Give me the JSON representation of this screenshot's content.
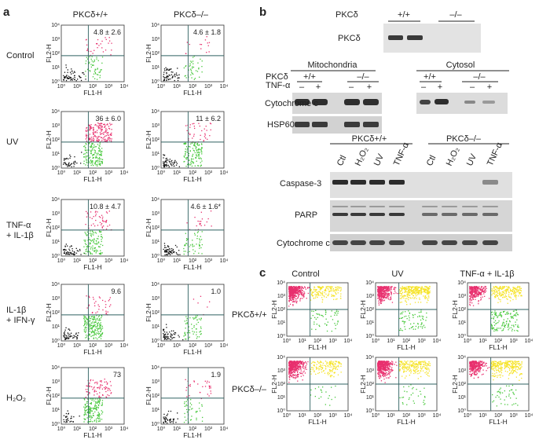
{
  "panel_a": {
    "letter": "a",
    "columns": [
      "PKCδ+/+",
      "PKCδ–/–"
    ],
    "axis": {
      "xlabel": "FL1-H",
      "ylabel": "FL2-H",
      "ticks": [
        "10⁰",
        "10¹",
        "10²",
        "10³",
        "10⁴"
      ]
    },
    "rows": [
      {
        "label": [
          "Control"
        ],
        "values": [
          "4.8 ± 2.6",
          "4.6 ± 1.8"
        ],
        "density": [
          [
            60,
            50,
            30
          ],
          [
            60,
            40,
            14
          ]
        ]
      },
      {
        "label": [
          "UV"
        ],
        "values": [
          "36 ± 6.0",
          "11 ± 6.2"
        ],
        "density": [
          [
            40,
            150,
            180
          ],
          [
            55,
            120,
            40
          ]
        ]
      },
      {
        "label": [
          "TNF-α",
          "+ IL-1β"
        ],
        "values": [
          "10.8 ± 4.7",
          "4.6 ± 1.6*"
        ],
        "density": [
          [
            55,
            110,
            50
          ],
          [
            60,
            50,
            20
          ]
        ]
      },
      {
        "label": [
          "IL-1β",
          "+ IFN-γ"
        ],
        "values": [
          "9.6",
          "1.0"
        ],
        "density": [
          [
            50,
            180,
            35
          ],
          [
            55,
            60,
            6
          ]
        ]
      },
      {
        "label": [
          "H₂O₂"
        ],
        "values": [
          "73",
          "1.9"
        ],
        "density": [
          [
            30,
            160,
            80
          ],
          [
            40,
            40,
            30
          ]
        ]
      }
    ]
  },
  "panel_b": {
    "letter": "b",
    "top_blot": {
      "gene": "PKCδ",
      "genotypes": [
        "+/+",
        "–/–"
      ],
      "band_label": "PKCδ"
    },
    "mito": {
      "title": "Mitochondria",
      "row1": "PKCδ",
      "row2": "TNF-α",
      "genotypes": [
        "+/+",
        "–/–"
      ],
      "signs": [
        "–",
        "+",
        "–",
        "+"
      ]
    },
    "cytosol": {
      "title": "Cytosol",
      "genotypes": [
        "+/+",
        "–/–"
      ],
      "signs": [
        "–",
        "+",
        "–",
        "+"
      ]
    },
    "blot_labels": [
      "Cytochrome c",
      "HSP60"
    ],
    "lower": {
      "genotypes": [
        "PKCδ+/+",
        "PKCδ–/–"
      ],
      "lanes": [
        "Ctl",
        "H₂O₂",
        "UV",
        "TNF-α",
        "Ctl",
        "H₂O₂",
        "UV",
        "TNF-α"
      ],
      "rows": [
        "Caspase-3",
        "PARP",
        "Cytochrome c"
      ]
    }
  },
  "panel_c": {
    "letter": "c",
    "columns": [
      "Control",
      "UV",
      "TNF-α + IL-1β"
    ],
    "rows": [
      "PKCδ+/+",
      "PKCδ–/–"
    ],
    "axis": {
      "xlabel": "FL1-H",
      "ylabel": "FL2-H",
      "ticks": [
        "10⁰",
        "10¹",
        "10²",
        "10³",
        "10⁴"
      ]
    },
    "density": [
      [
        [
          420,
          160,
          50
        ],
        [
          360,
          300,
          70
        ],
        [
          300,
          200,
          130
        ]
      ],
      [
        [
          480,
          140,
          20
        ],
        [
          420,
          200,
          30
        ],
        [
          300,
          260,
          40
        ]
      ]
    ]
  },
  "colors": {
    "red": "#e8306e",
    "green": "#48c83c",
    "black": "#111111",
    "yellow": "#f6e326",
    "blot_bg": "#e2e2e2",
    "band": "#333333"
  }
}
